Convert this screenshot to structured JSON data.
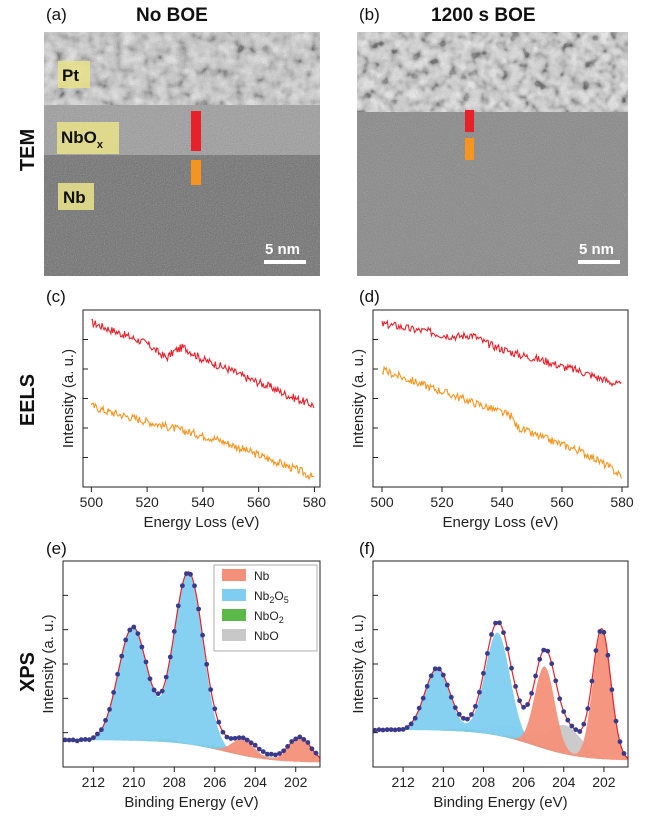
{
  "panels": {
    "a": "(a)",
    "b": "(b)",
    "c": "(c)",
    "d": "(d)",
    "e": "(e)",
    "f": "(f)"
  },
  "column_titles": {
    "left": "No BOE",
    "right": "1200 s BOE"
  },
  "row_labels": {
    "tem": "TEM",
    "eels": "EELS",
    "xps": "XPS"
  },
  "tem": {
    "layers": {
      "pt": "Pt",
      "nbox_base": "NbO",
      "nbox_sub": "x",
      "nb": "Nb"
    },
    "scale_bar": "5 nm",
    "colors": {
      "oxide_marker": "#e8202a",
      "metal_marker": "#f7941d",
      "label_bg": "#e7e08a"
    }
  },
  "chart_data": [
    {
      "type": "line",
      "panel": "c",
      "xlabel": "Energy Loss (eV)",
      "ylabel": "Intensity (a. u.)",
      "xlim": [
        497,
        582
      ],
      "ylim": [
        0,
        1
      ],
      "xticks": [
        500,
        520,
        540,
        560,
        580
      ],
      "series": [
        {
          "color": "#e8202a",
          "x": [
            500,
            505,
            510,
            515,
            520,
            524,
            527,
            530,
            533,
            536,
            540,
            545,
            550,
            555,
            560,
            565,
            570,
            575,
            580
          ],
          "y": [
            0.93,
            0.9,
            0.87,
            0.84,
            0.81,
            0.76,
            0.73,
            0.77,
            0.79,
            0.76,
            0.72,
            0.69,
            0.66,
            0.62,
            0.59,
            0.56,
            0.52,
            0.49,
            0.46
          ]
        },
        {
          "color": "#f7941d",
          "x": [
            500,
            505,
            510,
            515,
            520,
            525,
            530,
            535,
            540,
            545,
            550,
            555,
            560,
            565,
            570,
            575,
            580
          ],
          "y": [
            0.46,
            0.43,
            0.41,
            0.39,
            0.37,
            0.35,
            0.33,
            0.31,
            0.29,
            0.27,
            0.24,
            0.21,
            0.18,
            0.15,
            0.12,
            0.09,
            0.05
          ]
        }
      ]
    },
    {
      "type": "line",
      "panel": "d",
      "xlabel": "Energy Loss (eV)",
      "ylabel": "Intensity (a. u.)",
      "xlim": [
        497,
        582
      ],
      "ylim": [
        0,
        1
      ],
      "xticks": [
        500,
        520,
        540,
        560,
        580
      ],
      "series": [
        {
          "color": "#e8202a",
          "x": [
            500,
            505,
            510,
            515,
            520,
            525,
            530,
            535,
            540,
            545,
            550,
            555,
            560,
            565,
            570,
            575,
            580
          ],
          "y": [
            0.92,
            0.91,
            0.89,
            0.88,
            0.86,
            0.85,
            0.86,
            0.81,
            0.78,
            0.75,
            0.73,
            0.71,
            0.68,
            0.66,
            0.63,
            0.6,
            0.57
          ]
        },
        {
          "color": "#f7941d",
          "x": [
            500,
            505,
            510,
            515,
            520,
            525,
            530,
            535,
            540,
            543,
            545,
            550,
            555,
            560,
            565,
            570,
            575,
            580
          ],
          "y": [
            0.66,
            0.63,
            0.6,
            0.57,
            0.54,
            0.51,
            0.48,
            0.45,
            0.42,
            0.4,
            0.34,
            0.3,
            0.27,
            0.24,
            0.21,
            0.17,
            0.12,
            0.06
          ]
        }
      ]
    },
    {
      "type": "area",
      "panel": "e",
      "xlabel": "Binding Energy (eV)",
      "ylabel": "Intensity (a. u.)",
      "xlim": [
        213.5,
        200.8
      ],
      "ylim": [
        0,
        1
      ],
      "xticks": [
        212,
        210,
        208,
        206,
        204,
        202
      ],
      "tick_labels": [
        "212",
        "210",
        "208",
        "206",
        "204",
        "202"
      ],
      "legend": {
        "placement": "top-right",
        "entries": [
          "Nb",
          "Nb2O5",
          "NbO2",
          "NbO"
        ]
      },
      "components": [
        {
          "name": "Nb",
          "color": "#f4907a",
          "peaks": [
            {
              "center": 201.8,
              "height": 0.12,
              "width": 0.55
            },
            {
              "center": 204.6,
              "height": 0.08,
              "width": 0.55
            }
          ]
        },
        {
          "name": "Nb2O5",
          "color": "#7fcdf0",
          "peaks": [
            {
              "center": 207.3,
              "height": 0.83,
              "width": 0.72
            },
            {
              "center": 210.05,
              "height": 0.55,
              "width": 0.72
            }
          ]
        },
        {
          "name": "NbO2",
          "color": "#5cb847",
          "peaks": [
            {
              "center": 205.7,
              "height": 0.02,
              "width": 0.6
            },
            {
              "center": 208.4,
              "height": 0.015,
              "width": 0.6
            }
          ]
        },
        {
          "name": "NbO",
          "color": "#c8c8c8",
          "peaks": [
            {
              "center": 203.5,
              "height": 0.02,
              "width": 0.6
            },
            {
              "center": 206.3,
              "height": 0.015,
              "width": 0.6
            }
          ]
        }
      ],
      "background": {
        "start": 0.13,
        "end": 0.02
      },
      "fit_color": "#e8202a",
      "data_color": "#3a3a8c"
    },
    {
      "type": "area",
      "panel": "f",
      "xlabel": "Binding Energy (eV)",
      "ylabel": "Intensity (a. u.)",
      "xlim": [
        213.5,
        200.8
      ],
      "ylim": [
        0,
        1
      ],
      "xticks": [
        212,
        210,
        208,
        206,
        204,
        202
      ],
      "tick_labels": [
        "212",
        "210",
        "208",
        "206",
        "204",
        "202"
      ],
      "components": [
        {
          "name": "Nb",
          "color": "#f4907a",
          "peaks": [
            {
              "center": 202.1,
              "height": 0.62,
              "width": 0.45
            },
            {
              "center": 204.95,
              "height": 0.4,
              "width": 0.5
            }
          ]
        },
        {
          "name": "Nb2O5",
          "color": "#7fcdf0",
          "peaks": [
            {
              "center": 207.3,
              "height": 0.5,
              "width": 0.62
            },
            {
              "center": 210.3,
              "height": 0.3,
              "width": 0.62
            }
          ]
        },
        {
          "name": "NbO2",
          "color": "#5cb847",
          "peaks": [
            {
              "center": 206.0,
              "height": 0.02,
              "width": 0.7
            },
            {
              "center": 208.8,
              "height": 0.015,
              "width": 0.7
            }
          ]
        },
        {
          "name": "NbO",
          "color": "#c8c8c8",
          "peaks": [
            {
              "center": 203.95,
              "height": 0.14,
              "width": 0.85
            },
            {
              "center": 206.7,
              "height": 0.06,
              "width": 0.85
            }
          ]
        }
      ],
      "background": {
        "start": 0.18,
        "end": 0.03
      },
      "fit_color": "#e8202a",
      "data_color": "#3a3a8c"
    }
  ]
}
